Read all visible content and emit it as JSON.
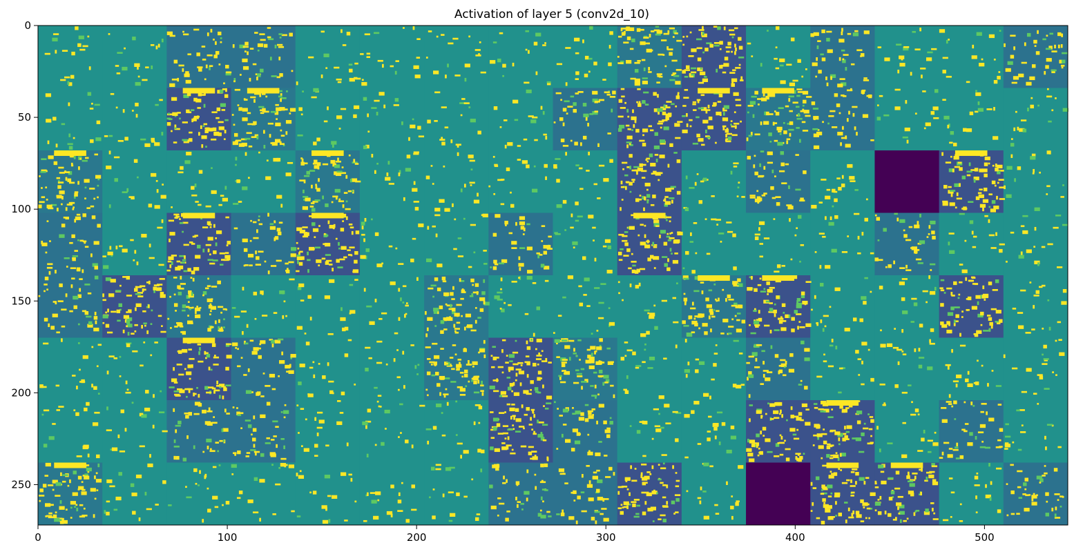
{
  "chart_data": {
    "type": "heatmap",
    "title": "Activation of layer 5 (conv2d_10)",
    "xlabel": "",
    "ylabel": "",
    "xlim": [
      0,
      544
    ],
    "ylim": [
      272,
      0
    ],
    "x_ticks": [
      0,
      100,
      200,
      300,
      400,
      500
    ],
    "y_ticks": [
      0,
      50,
      100,
      150,
      200,
      250
    ],
    "grid": false,
    "colormap": "viridis",
    "grid_layout": {
      "rows": 8,
      "cols": 16,
      "cell_size": 34
    },
    "tile_styles": {
      "names": [
        "dark-blue",
        "teal",
        "dark-teal",
        "cat-dark",
        "cat-mid",
        "dead",
        "bright-top"
      ],
      "fills": [
        "#3b5a8c",
        "#21918c",
        "#2c728e",
        "#3b528b",
        "#2a788e",
        "#440154",
        "#3b528b"
      ],
      "grid": [
        [
          1,
          1,
          2,
          2,
          1,
          1,
          1,
          1,
          1,
          4,
          3,
          1,
          2,
          1,
          1,
          2
        ],
        [
          1,
          1,
          3,
          4,
          1,
          1,
          1,
          1,
          2,
          3,
          3,
          4,
          2,
          1,
          1,
          1
        ],
        [
          4,
          1,
          1,
          1,
          4,
          1,
          1,
          1,
          1,
          3,
          1,
          2,
          1,
          5,
          3,
          1
        ],
        [
          2,
          1,
          3,
          2,
          3,
          1,
          1,
          2,
          1,
          3,
          1,
          1,
          1,
          2,
          1,
          1
        ],
        [
          2,
          3,
          4,
          1,
          1,
          1,
          4,
          1,
          1,
          1,
          4,
          3,
          1,
          1,
          3,
          1
        ],
        [
          1,
          1,
          3,
          2,
          1,
          1,
          4,
          3,
          4,
          1,
          1,
          2,
          1,
          1,
          1,
          1
        ],
        [
          1,
          1,
          2,
          2,
          1,
          1,
          1,
          3,
          2,
          1,
          1,
          3,
          3,
          1,
          2,
          1
        ],
        [
          4,
          1,
          1,
          1,
          1,
          1,
          1,
          2,
          2,
          3,
          1,
          5,
          3,
          3,
          1,
          2
        ]
      ]
    },
    "colors": {
      "yellow": "#fde725",
      "dead": "#440154",
      "axis": "#000000"
    }
  }
}
